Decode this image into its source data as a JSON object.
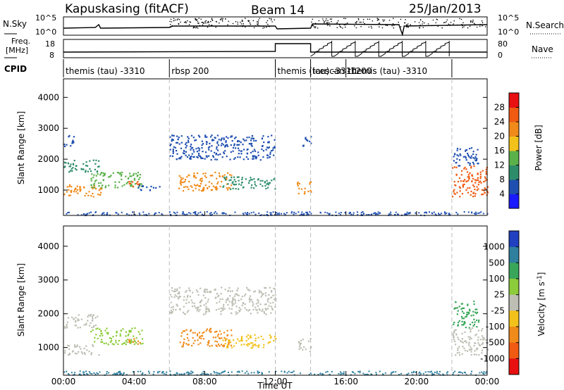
{
  "header": {
    "station": "Kapuskasing (fitACF)",
    "beam": "Beam 14",
    "date": "25/Jan/2013"
  },
  "strip_labels": {
    "nsky": "N.Sky",
    "nsearch": "N.Search",
    "freq": "Freq.",
    "freq_unit": "[MHz]",
    "nave": "Nave",
    "cpid": "CPID",
    "nsky_ticks": [
      "10^5",
      "10^0"
    ],
    "nsearch_ticks": [
      "10^5",
      "10^0"
    ],
    "freq_ticks": [
      "18",
      "8"
    ],
    "nave_ticks": [
      "80",
      "0"
    ]
  },
  "cpid_segments": [
    {
      "label": "themis (tau) -3310",
      "start": 0,
      "end": 6
    },
    {
      "label": "rbsp 200",
      "start": 6,
      "end": 12
    },
    {
      "label": "themis (tau) -3310",
      "start": 12,
      "end": 14
    },
    {
      "label": "icescan -1200",
      "start": 14,
      "end": 16
    },
    {
      "label": "themis (tau) -3310",
      "start": 16,
      "end": 22
    },
    {
      "label": "",
      "start": 22,
      "end": 24
    }
  ],
  "chart_data": [
    {
      "type": "heatmap",
      "panel": "power",
      "ylabel": "Slant Range [km]",
      "ylim": [
        180,
        4600
      ],
      "yticks": [
        1000,
        2000,
        3000,
        4000
      ],
      "xlim": [
        0,
        24
      ],
      "colorbar": {
        "label": "Power [dB]",
        "ticks": [
          "4",
          "8",
          "12",
          "16",
          "20",
          "24",
          "28"
        ],
        "colors": [
          "#1a1aff",
          "#1f4fb0",
          "#2d8c6a",
          "#5ab14a",
          "#f2c21b",
          "#f08a1a",
          "#f05a12",
          "#e81010"
        ]
      },
      "features": [
        {
          "t": [
            0.0,
            2.2
          ],
          "r": [
            800,
            1200
          ],
          "color": "#f08a1a"
        },
        {
          "t": [
            0.0,
            2.0
          ],
          "r": [
            1600,
            2000
          ],
          "color": "#2d8c6a"
        },
        {
          "t": [
            0.0,
            0.6
          ],
          "r": [
            2400,
            2800
          ],
          "color": "#1f4fb0"
        },
        {
          "t": [
            1.5,
            4.5
          ],
          "r": [
            1100,
            1600
          ],
          "color": "#5ab14a"
        },
        {
          "t": [
            3.5,
            4.3
          ],
          "r": [
            1100,
            1300
          ],
          "color": "#f05a12"
        },
        {
          "t": [
            4.2,
            5.5
          ],
          "r": [
            1000,
            1200
          ],
          "color": "#1f4fb0"
        },
        {
          "t": [
            6.0,
            12.0
          ],
          "r": [
            2000,
            2800
          ],
          "color": "#1f4fb0"
        },
        {
          "t": [
            6.5,
            9.5
          ],
          "r": [
            1000,
            1600
          ],
          "color": "#f08a1a"
        },
        {
          "t": [
            9.0,
            12.0
          ],
          "r": [
            1050,
            1450
          ],
          "color": "#2d8c6a"
        },
        {
          "t": [
            13.2,
            14.0
          ],
          "r": [
            900,
            1300
          ],
          "color": "#f08a1a"
        },
        {
          "t": [
            13.5,
            14.0
          ],
          "r": [
            2400,
            2800
          ],
          "color": "#1f4fb0"
        },
        {
          "t": [
            22.0,
            24.0
          ],
          "r": [
            800,
            1800
          ],
          "color": "#f05a12"
        },
        {
          "t": [
            22.0,
            23.5
          ],
          "r": [
            1800,
            2400
          ],
          "color": "#1f4fb0"
        }
      ]
    },
    {
      "type": "heatmap",
      "panel": "velocity",
      "ylabel": "Slant Range [km]",
      "xlabel": "Time UT",
      "ylim": [
        180,
        4600
      ],
      "yticks": [
        1000,
        2000,
        3000,
        4000
      ],
      "xlim": [
        0,
        24
      ],
      "xticks": [
        "00:00",
        "04:00",
        "08:00",
        "12:00",
        "16:00",
        "20:00",
        "00:00"
      ],
      "colorbar": {
        "label": "Velocity [m s^-1]",
        "ticks": [
          "1000",
          "500",
          "100",
          "25",
          "-25",
          "-100",
          "-500",
          "-1000"
        ],
        "colors": [
          "#2040c0",
          "#2f7f9f",
          "#3aa65a",
          "#8ccc3a",
          "#bebeb4",
          "#f2c21b",
          "#f08a1a",
          "#f05a12",
          "#e81010"
        ]
      },
      "features": [
        {
          "t": [
            0.0,
            2.0
          ],
          "r": [
            800,
            1100
          ],
          "color": "#bebeb4"
        },
        {
          "t": [
            0.0,
            2.0
          ],
          "r": [
            1600,
            2000
          ],
          "color": "#bebeb4"
        },
        {
          "t": [
            1.5,
            4.5
          ],
          "r": [
            1100,
            1600
          ],
          "color": "#8ccc3a"
        },
        {
          "t": [
            3.5,
            4.3
          ],
          "r": [
            1100,
            1300
          ],
          "color": "#f08a1a"
        },
        {
          "t": [
            6.0,
            12.0
          ],
          "r": [
            2000,
            2800
          ],
          "color": "#bebeb4"
        },
        {
          "t": [
            6.5,
            9.5
          ],
          "r": [
            1050,
            1600
          ],
          "color": "#f08a1a"
        },
        {
          "t": [
            9.0,
            12.0
          ],
          "r": [
            1000,
            1400
          ],
          "color": "#f2c21b"
        },
        {
          "t": [
            13.2,
            14.0
          ],
          "r": [
            900,
            1300
          ],
          "color": "#bebeb4"
        },
        {
          "t": [
            22.0,
            24.0
          ],
          "r": [
            800,
            1600
          ],
          "color": "#bebeb4"
        },
        {
          "t": [
            22.0,
            23.5
          ],
          "r": [
            1600,
            2400
          ],
          "color": "#3aa65a"
        }
      ]
    }
  ]
}
